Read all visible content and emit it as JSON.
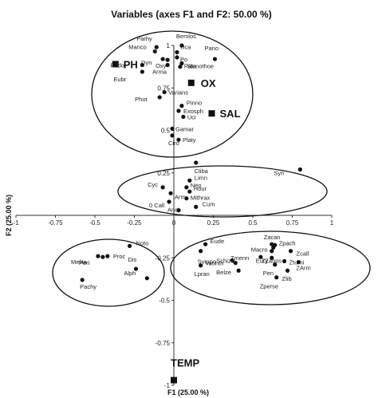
{
  "chart_data": {
    "type": "scatter",
    "title": "Variables (axes F1 and F2: 50.00 %)",
    "xlabel": "F1 (25.00 %)",
    "ylabel": "F2 (25.00 %)",
    "xlim": [
      -1,
      1
    ],
    "ylim": [
      -1,
      1
    ],
    "x_ticks": [
      "-1",
      "-0.75",
      "-0.5",
      "-0.25",
      "0",
      "0.25",
      "0.5",
      "0.75",
      "1"
    ],
    "y_ticks": [
      "-1",
      "-0.75",
      "-0.5",
      "-0.25",
      "0",
      "0.25",
      "0.5",
      "0.75",
      "1"
    ],
    "grid": false,
    "series": [
      {
        "marker": "circle",
        "points": [
          {
            "label": "Parhy",
            "x": -0.11,
            "y": 0.99
          },
          {
            "label": "Bemlos",
            "x": 0.05,
            "y": 1.0
          },
          {
            "label": "Manco",
            "x": -0.12,
            "y": 0.965
          },
          {
            "label": "Uca",
            "x": 0.02,
            "y": 0.96
          },
          {
            "label": "Po",
            "x": 0.02,
            "y": 0.93
          },
          {
            "label": "Pano",
            "x": 0.26,
            "y": 0.92
          },
          {
            "label": "Dyn",
            "x": -0.07,
            "y": 0.92
          },
          {
            "label": "Oxy",
            "x": -0.04,
            "y": 0.915
          },
          {
            "label": "Stenothoe",
            "x": 0.05,
            "y": 0.895
          },
          {
            "label": "Podo",
            "x": -0.2,
            "y": 0.885
          },
          {
            "label": "Arma",
            "x": -0.04,
            "y": 0.885
          },
          {
            "label": "Pala",
            "x": 0.04,
            "y": 0.875
          },
          {
            "label": "Eubr",
            "x": -0.2,
            "y": 0.845
          },
          {
            "label": "Varians",
            "x": -0.06,
            "y": 0.725
          },
          {
            "label": "Phot",
            "x": -0.09,
            "y": 0.695
          },
          {
            "label": "Pinno",
            "x": 0.05,
            "y": 0.645
          },
          {
            "label": "Exosph",
            "x": 0.03,
            "y": 0.615
          },
          {
            "label": "Uci",
            "x": 0.06,
            "y": 0.58
          },
          {
            "label": "Gamar",
            "x": -0.01,
            "y": 0.51
          },
          {
            "label": "Ciro",
            "x": -0.01,
            "y": 0.47
          },
          {
            "label": "Platy",
            "x": 0.03,
            "y": 0.445
          },
          {
            "label": "Cliba",
            "x": 0.14,
            "y": 0.31
          },
          {
            "label": "Syn",
            "x": 0.8,
            "y": 0.27
          },
          {
            "label": "Limn",
            "x": 0.1,
            "y": 0.205
          },
          {
            "label": "Cyc",
            "x": -0.07,
            "y": 0.165
          },
          {
            "label": "Neo",
            "x": 0.08,
            "y": 0.165
          },
          {
            "label": "Hour",
            "x": 0.1,
            "y": 0.14
          },
          {
            "label": "Arm",
            "x": -0.02,
            "y": 0.13
          },
          {
            "label": "Mithrax",
            "x": 0.08,
            "y": 0.1
          },
          {
            "label": "0 Call",
            "x": -0.03,
            "y": 0.08
          },
          {
            "label": "Cum",
            "x": 0.14,
            "y": 0.05
          },
          {
            "label": "Anci",
            "x": 0.03,
            "y": 0.03
          },
          {
            "label": "Noto",
            "x": -0.28,
            "y": -0.18
          },
          {
            "label": "Peri",
            "x": -0.45,
            "y": -0.245
          },
          {
            "label": "Proc",
            "x": -0.42,
            "y": -0.24
          },
          {
            "label": "Melita",
            "x": -0.48,
            "y": -0.24
          },
          {
            "label": "Dis",
            "x": -0.24,
            "y": -0.315
          },
          {
            "label": "Alph",
            "x": -0.17,
            "y": -0.37
          },
          {
            "label": "Pachy",
            "x": -0.58,
            "y": -0.38
          },
          {
            "label": "Eude",
            "x": 0.2,
            "y": -0.17
          },
          {
            "label": "Zacan",
            "x": 0.62,
            "y": -0.17
          },
          {
            "label": "Zpach",
            "x": 0.64,
            "y": -0.175
          },
          {
            "label": "Macro",
            "x": 0.63,
            "y": -0.19
          },
          {
            "label": "ZZaops",
            "x": 0.62,
            "y": -0.21
          },
          {
            "label": "Sympo",
            "x": 0.17,
            "y": -0.21
          },
          {
            "label": "Zcall",
            "x": 0.74,
            "y": -0.21
          },
          {
            "label": "Zmenn",
            "x": 0.55,
            "y": -0.245
          },
          {
            "label": "Eury",
            "x": 0.62,
            "y": -0.25
          },
          {
            "label": "Schizo",
            "x": 0.37,
            "y": -0.265
          },
          {
            "label": "Ztumi",
            "x": 0.7,
            "y": -0.27
          },
          {
            "label": "ZArm",
            "x": 0.79,
            "y": -0.275
          },
          {
            "label": "Vaunth",
            "x": 0.39,
            "y": -0.28
          },
          {
            "label": "Pen",
            "x": 0.64,
            "y": -0.29
          },
          {
            "label": "Lpran",
            "x": 0.17,
            "y": -0.295
          },
          {
            "label": "Belze",
            "x": 0.41,
            "y": -0.325
          },
          {
            "label": "Zlib",
            "x": 0.72,
            "y": -0.325
          },
          {
            "label": "Zperse",
            "x": 0.65,
            "y": -0.365
          }
        ]
      },
      {
        "marker": "square",
        "points": [
          {
            "label": "PH",
            "x": -0.37,
            "y": 0.89
          },
          {
            "label": "OX",
            "x": 0.11,
            "y": 0.78
          },
          {
            "label": "SAL",
            "x": 0.24,
            "y": 0.6
          },
          {
            "label": "TEMP",
            "x": 0.0,
            "y": -0.97
          }
        ]
      }
    ]
  }
}
